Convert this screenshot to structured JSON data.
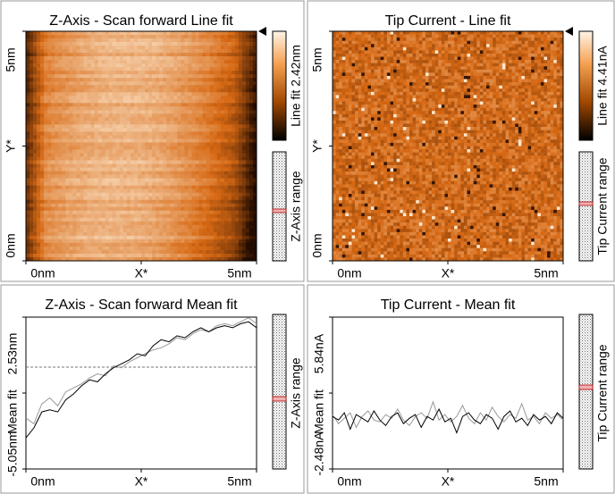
{
  "panels": [
    {
      "type": "image",
      "title": "Z-Axis - Scan forward    Line fit",
      "y_labels": [
        "5nm",
        "Y*",
        "0nm"
      ],
      "x_labels": [
        "0nm",
        "X*",
        "5nm"
      ],
      "colorbar_label": "Line fit 2.42nm",
      "range_label": "Z-Axis range"
    },
    {
      "type": "image",
      "title": "Tip Current - Line fit",
      "y_labels": [
        "5nm",
        "Y*",
        "0nm"
      ],
      "x_labels": [
        "0nm",
        "X*",
        "5nm"
      ],
      "colorbar_label": "Line fit 4.41nA",
      "range_label": "Tip Current range"
    },
    {
      "type": "line",
      "title": "Z-Axis - Scan forward    Mean fit",
      "x_labels": [
        "0nm",
        "X*",
        "5nm"
      ],
      "ylabel": "Mean fit",
      "ylim": [
        {
          "value": -5.05,
          "label": "-5.05nm"
        },
        {
          "value": 2.53,
          "label": "2.53nm"
        }
      ],
      "range_label": "Z-Axis range",
      "series": [
        {
          "color": "#000000",
          "values": [
            -3.5,
            -3.0,
            -2.2,
            -2.1,
            -2.2,
            -1.6,
            -1.3,
            -0.9,
            -0.6,
            -0.7,
            -0.3,
            0.0,
            0.2,
            0.4,
            0.7,
            0.6,
            1.1,
            1.4,
            1.3,
            1.6,
            1.5,
            1.8,
            2.0,
            1.8,
            2.0,
            2.1,
            2.0,
            2.2,
            2.3,
            2.0
          ]
        },
        {
          "color": "#999999",
          "values": [
            -2.5,
            -2.8,
            -1.8,
            -1.5,
            -1.9,
            -1.2,
            -1.0,
            -0.8,
            -0.5,
            -0.3,
            -0.4,
            0.1,
            0.0,
            0.3,
            0.5,
            0.7,
            0.9,
            1.0,
            1.2,
            1.5,
            1.4,
            1.7,
            1.9,
            1.8,
            2.1,
            2.2,
            2.1,
            2.3,
            2.5,
            2.2
          ]
        }
      ]
    },
    {
      "type": "line",
      "title": "Tip Current - Mean fit",
      "x_labels": [
        "0nm",
        "X*",
        "5nm"
      ],
      "ylabel": "Mean fit",
      "ylim": [
        {
          "value": -2.48,
          "label": "-2.48nA"
        },
        {
          "value": 5.84,
          "label": "5.84nA"
        }
      ],
      "range_label": "Tip Current range",
      "series": [
        {
          "color": "#000000",
          "values": [
            0.4,
            0.2,
            0.6,
            -0.3,
            0.5,
            0.3,
            0.1,
            0.7,
            0.2,
            -0.1,
            0.4,
            0.6,
            0.0,
            0.3,
            0.5,
            -0.2,
            0.4,
            0.2,
            0.8,
            0.1,
            0.3,
            -0.5,
            0.4,
            0.6,
            0.2,
            0.0,
            0.5,
            0.3,
            -0.3,
            0.4,
            0.7,
            0.1,
            0.3,
            -0.1,
            0.5,
            0.2,
            0.4,
            0.0,
            0.6,
            0.3
          ]
        },
        {
          "color": "#999999",
          "values": [
            0.5,
            0.0,
            0.3,
            0.6,
            -0.2,
            0.4,
            0.7,
            0.2,
            0.1,
            0.5,
            0.3,
            0.8,
            0.2,
            -0.1,
            0.4,
            0.6,
            0.3,
            1.2,
            0.2,
            0.5,
            0.1,
            0.4,
            1.0,
            0.3,
            0.0,
            0.6,
            0.2,
            0.9,
            0.4,
            0.1,
            0.5,
            0.3,
            1.1,
            0.2,
            0.4,
            0.0,
            0.6,
            0.3,
            0.5,
            0.2
          ]
        }
      ]
    }
  ]
}
